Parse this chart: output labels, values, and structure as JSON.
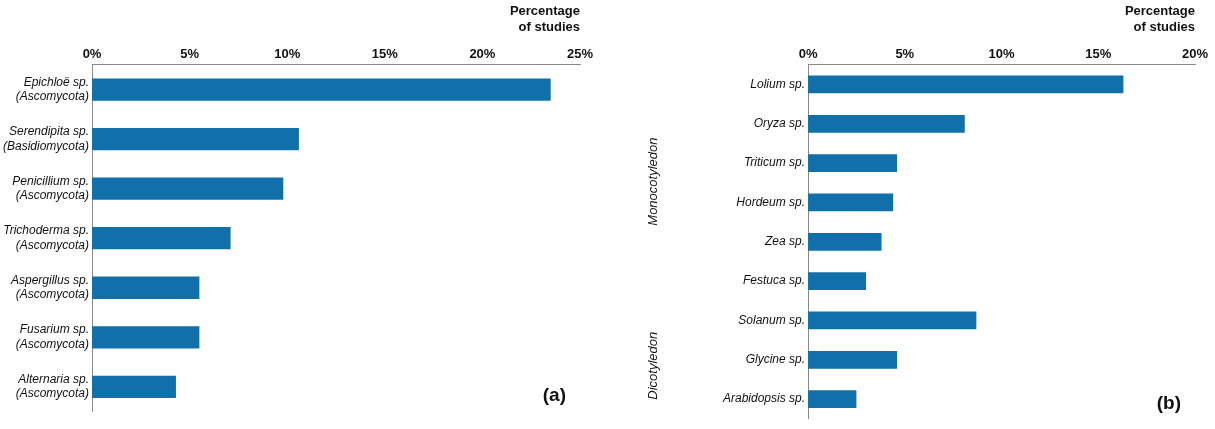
{
  "chart_data": [
    {
      "type": "bar",
      "orientation": "horizontal",
      "xlabel": "Percentage of studies",
      "categories": [
        "Epichloë sp. (Ascomycota)",
        "Serendipita sp. (Basidiomycota)",
        "Penicillium sp. (Ascomycota)",
        "Trichoderma sp. (Ascomycota)",
        "Aspergillus sp. (Ascomycota)",
        "Fusarium sp. (Ascomycota)",
        "Alternaria sp. (Ascomycota)"
      ],
      "values": [
        23.5,
        10.6,
        9.8,
        7.1,
        5.5,
        5.5,
        4.3
      ],
      "color": "#1170aa",
      "xlim": [
        0,
        25
      ],
      "xticks": [
        {
          "value": 0,
          "label": "0%"
        },
        {
          "value": 5,
          "label": "5%"
        },
        {
          "value": 10,
          "label": "10%"
        },
        {
          "value": 15,
          "label": "15%"
        },
        {
          "value": 20,
          "label": "20%"
        },
        {
          "value": 25,
          "label": "25%"
        }
      ],
      "grid": false,
      "legend": false,
      "annotations": [
        "(a)"
      ]
    },
    {
      "type": "bar",
      "orientation": "horizontal",
      "xlabel": "Percentage of studies",
      "categories": [
        "Lolium sp.",
        "Oryza sp.",
        "Triticum sp.",
        "Hordeum sp.",
        "Zea sp.",
        "Festuca sp.",
        "Solanum sp.",
        "Glycine sp.",
        "Arabidopsis sp."
      ],
      "values": [
        16.3,
        8.1,
        4.6,
        4.4,
        3.8,
        3.0,
        8.7,
        4.6,
        2.5
      ],
      "color": "#1170aa",
      "xlim": [
        0,
        20
      ],
      "xticks": [
        {
          "value": 0,
          "label": "0%"
        },
        {
          "value": 5,
          "label": "5%"
        },
        {
          "value": 10,
          "label": "10%"
        },
        {
          "value": 15,
          "label": "15%"
        },
        {
          "value": 20,
          "label": "20%"
        }
      ],
      "grid": false,
      "legend": false,
      "annotations": [
        "Monocotyledon",
        "Dicotyledon",
        "(b)"
      ]
    }
  ]
}
